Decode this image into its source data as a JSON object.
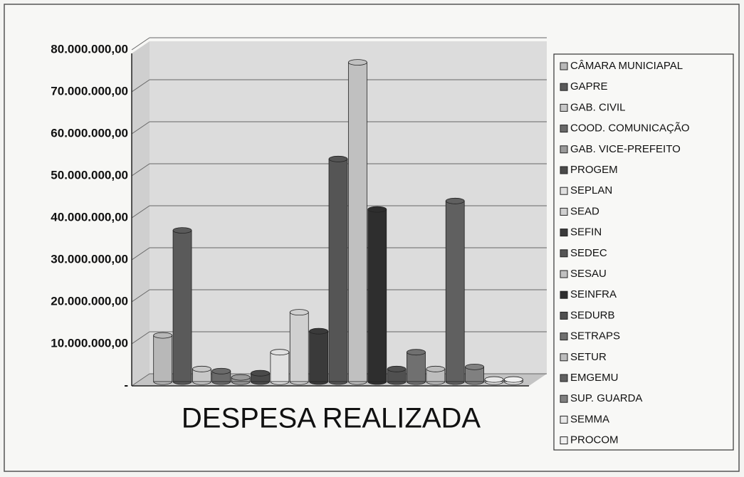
{
  "chart_data": {
    "type": "bar",
    "title": "DESPESA REALIZADA",
    "ylim": [
      0,
      80000000
    ],
    "yticks": [
      {
        "value": 0,
        "label": "-"
      },
      {
        "value": 10000000,
        "label": "10.000.000,00"
      },
      {
        "value": 20000000,
        "label": "20.000.000,00"
      },
      {
        "value": 30000000,
        "label": "30.000.000,00"
      },
      {
        "value": 40000000,
        "label": "40.000.000,00"
      },
      {
        "value": 50000000,
        "label": "50.000.000,00"
      },
      {
        "value": 60000000,
        "label": "60.000.000,00"
      },
      {
        "value": 70000000,
        "label": "70.000.000,00"
      },
      {
        "value": 80000000,
        "label": "80.000.000,00"
      }
    ],
    "grid": true,
    "legend": "right",
    "series": [
      {
        "name": "CÂMARA MUNICIAPAL",
        "color": "#b8b8b8",
        "values": [
          11000000
        ]
      },
      {
        "name": "GAPRE",
        "color": "#5a5a5a",
        "values": [
          36000000
        ]
      },
      {
        "name": "GAB. CIVIL",
        "color": "#c8c8c8",
        "values": [
          3000000
        ]
      },
      {
        "name": "COOD. COMUNICAÇÃO",
        "color": "#6a6a6a",
        "values": [
          2500000
        ]
      },
      {
        "name": "GAB. VICE-PREFEITO",
        "color": "#9a9a9a",
        "values": [
          1000000
        ]
      },
      {
        "name": "PROGEM",
        "color": "#4a4a4a",
        "values": [
          2000000
        ]
      },
      {
        "name": "SEPLAN",
        "color": "#e0e0e0",
        "values": [
          7000000
        ]
      },
      {
        "name": "SEAD",
        "color": "#d0d0d0",
        "values": [
          16500000
        ]
      },
      {
        "name": "SEFIN",
        "color": "#3a3a3a",
        "values": [
          12000000
        ]
      },
      {
        "name": "SEDEC",
        "color": "#555555",
        "values": [
          53000000
        ]
      },
      {
        "name": "SESAU",
        "color": "#c0c0c0",
        "values": [
          76000000
        ]
      },
      {
        "name": "SEINFRA",
        "color": "#2e2e2e",
        "values": [
          41000000
        ]
      },
      {
        "name": "SEDURB",
        "color": "#505050",
        "values": [
          3000000
        ]
      },
      {
        "name": "SETRAPS",
        "color": "#707070",
        "values": [
          7000000
        ]
      },
      {
        "name": "SETUR",
        "color": "#bdbdbd",
        "values": [
          3000000
        ]
      },
      {
        "name": "EMGEMU",
        "color": "#606060",
        "values": [
          43000000
        ]
      },
      {
        "name": "SUP. GUARDA",
        "color": "#808080",
        "values": [
          3500000
        ]
      },
      {
        "name": "SEMMA",
        "color": "#e8e8e8",
        "values": [
          500000
        ]
      },
      {
        "name": "PROCOM",
        "color": "#f0f0f0",
        "values": [
          500000
        ]
      }
    ]
  }
}
